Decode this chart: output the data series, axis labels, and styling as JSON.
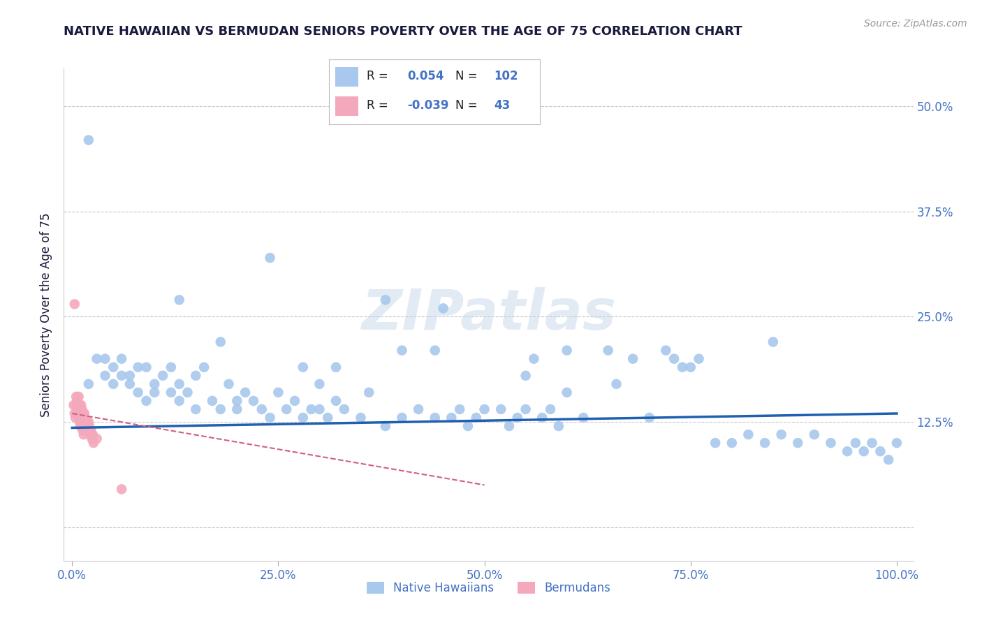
{
  "title": "NATIVE HAWAIIAN VS BERMUDAN SENIORS POVERTY OVER THE AGE OF 75 CORRELATION CHART",
  "source": "Source: ZipAtlas.com",
  "ylabel": "Seniors Poverty Over the Age of 75",
  "xlim": [
    -0.01,
    1.02
  ],
  "ylim": [
    -0.04,
    0.545
  ],
  "xticks": [
    0.0,
    0.25,
    0.5,
    0.75,
    1.0
  ],
  "xticklabels": [
    "0.0%",
    "25.0%",
    "50.0%",
    "75.0%",
    "100.0%"
  ],
  "yticks": [
    0.0,
    0.125,
    0.25,
    0.375,
    0.5
  ],
  "yticklabels": [
    "",
    "12.5%",
    "25.0%",
    "37.5%",
    "50.0%"
  ],
  "blue_color": "#A8C8ED",
  "pink_color": "#F4A8BB",
  "blue_line_color": "#2060B0",
  "pink_line_color": "#D06080",
  "grid_color": "#C8C8C8",
  "title_color": "#1a1a3e",
  "axis_label_color": "#1a1a3e",
  "tick_color": "#4472C4",
  "watermark": "ZIPatlas",
  "blue_scatter_x": [
    0.02,
    0.02,
    0.03,
    0.04,
    0.04,
    0.05,
    0.05,
    0.06,
    0.06,
    0.07,
    0.07,
    0.08,
    0.08,
    0.09,
    0.09,
    0.1,
    0.1,
    0.11,
    0.12,
    0.12,
    0.13,
    0.13,
    0.14,
    0.15,
    0.15,
    0.16,
    0.17,
    0.18,
    0.19,
    0.2,
    0.2,
    0.21,
    0.22,
    0.23,
    0.24,
    0.25,
    0.26,
    0.27,
    0.28,
    0.29,
    0.3,
    0.31,
    0.32,
    0.33,
    0.35,
    0.36,
    0.38,
    0.4,
    0.42,
    0.44,
    0.45,
    0.46,
    0.47,
    0.48,
    0.49,
    0.5,
    0.52,
    0.53,
    0.54,
    0.55,
    0.56,
    0.57,
    0.58,
    0.59,
    0.6,
    0.62,
    0.65,
    0.68,
    0.7,
    0.72,
    0.73,
    0.74,
    0.75,
    0.76,
    0.78,
    0.8,
    0.82,
    0.84,
    0.85,
    0.86,
    0.88,
    0.9,
    0.92,
    0.94,
    0.95,
    0.96,
    0.97,
    0.98,
    0.99,
    1.0,
    0.38,
    0.24,
    0.13,
    0.28,
    0.32,
    0.4,
    0.44,
    0.18,
    0.55,
    0.6,
    0.66,
    0.3
  ],
  "blue_scatter_y": [
    0.46,
    0.17,
    0.2,
    0.18,
    0.2,
    0.19,
    0.17,
    0.18,
    0.2,
    0.18,
    0.17,
    0.19,
    0.16,
    0.19,
    0.15,
    0.17,
    0.16,
    0.18,
    0.19,
    0.16,
    0.17,
    0.15,
    0.16,
    0.18,
    0.14,
    0.19,
    0.15,
    0.14,
    0.17,
    0.15,
    0.14,
    0.16,
    0.15,
    0.14,
    0.13,
    0.16,
    0.14,
    0.15,
    0.13,
    0.14,
    0.14,
    0.13,
    0.15,
    0.14,
    0.13,
    0.16,
    0.12,
    0.13,
    0.14,
    0.13,
    0.26,
    0.13,
    0.14,
    0.12,
    0.13,
    0.14,
    0.14,
    0.12,
    0.13,
    0.14,
    0.2,
    0.13,
    0.14,
    0.12,
    0.21,
    0.13,
    0.21,
    0.2,
    0.13,
    0.21,
    0.2,
    0.19,
    0.19,
    0.2,
    0.1,
    0.1,
    0.11,
    0.1,
    0.22,
    0.11,
    0.1,
    0.11,
    0.1,
    0.09,
    0.1,
    0.09,
    0.1,
    0.09,
    0.08,
    0.1,
    0.27,
    0.32,
    0.27,
    0.19,
    0.19,
    0.21,
    0.21,
    0.22,
    0.18,
    0.16,
    0.17,
    0.17
  ],
  "pink_scatter_x": [
    0.002,
    0.003,
    0.004,
    0.005,
    0.005,
    0.006,
    0.006,
    0.007,
    0.007,
    0.008,
    0.008,
    0.008,
    0.009,
    0.009,
    0.01,
    0.01,
    0.01,
    0.011,
    0.011,
    0.012,
    0.012,
    0.013,
    0.013,
    0.014,
    0.014,
    0.015,
    0.015,
    0.016,
    0.017,
    0.018,
    0.018,
    0.019,
    0.02,
    0.02,
    0.021,
    0.022,
    0.023,
    0.024,
    0.025,
    0.026,
    0.03,
    0.06,
    0.003
  ],
  "pink_scatter_y": [
    0.145,
    0.135,
    0.13,
    0.155,
    0.145,
    0.15,
    0.14,
    0.145,
    0.135,
    0.14,
    0.13,
    0.155,
    0.145,
    0.125,
    0.14,
    0.13,
    0.12,
    0.145,
    0.125,
    0.14,
    0.12,
    0.135,
    0.115,
    0.13,
    0.11,
    0.135,
    0.115,
    0.12,
    0.125,
    0.12,
    0.125,
    0.115,
    0.125,
    0.115,
    0.12,
    0.11,
    0.115,
    0.105,
    0.11,
    0.1,
    0.105,
    0.045,
    0.265
  ],
  "blue_trend_x": [
    0.0,
    1.0
  ],
  "blue_trend_y": [
    0.118,
    0.135
  ],
  "pink_trend_x": [
    0.0,
    0.5
  ],
  "pink_trend_y": [
    0.135,
    0.05
  ]
}
